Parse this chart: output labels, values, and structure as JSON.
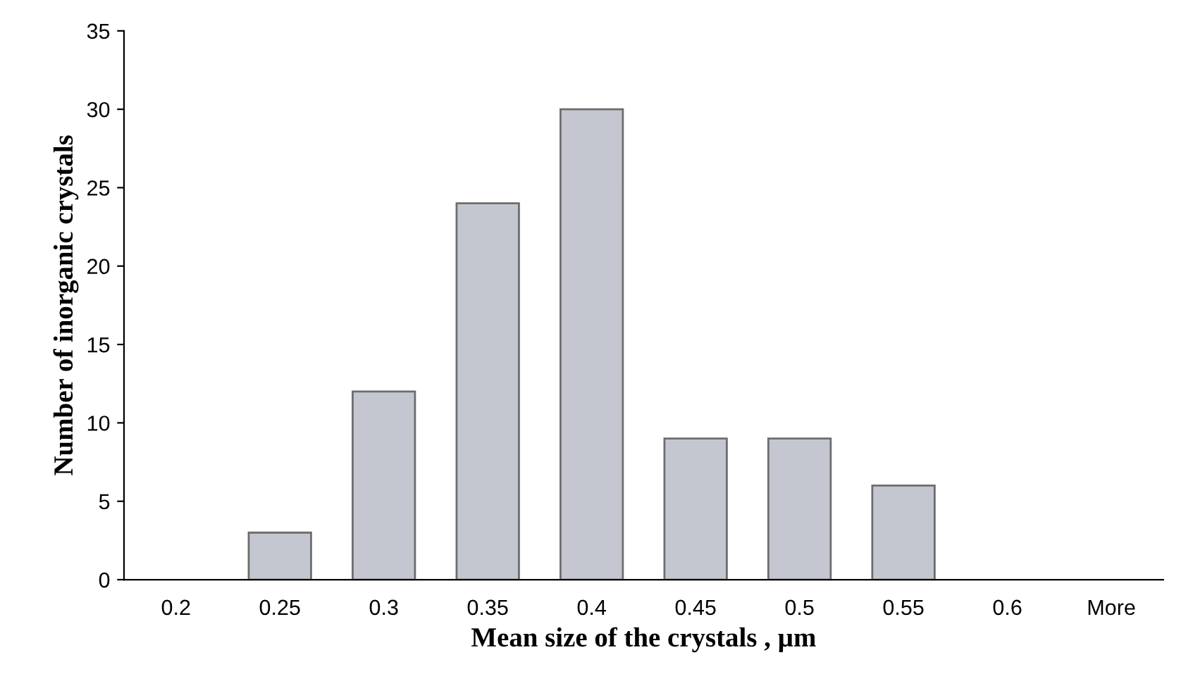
{
  "chart_data": {
    "type": "bar",
    "xlabel": "Mean size of the crystals , µm",
    "ylabel": "Number of inorganic crystals",
    "categories": [
      "0.2",
      "0.25",
      "0.3",
      "0.35",
      "0.4",
      "0.45",
      "0.5",
      "0.55",
      "0.6",
      "More"
    ],
    "values": [
      0,
      3,
      12,
      24,
      30,
      9,
      9,
      6,
      0,
      0
    ],
    "color": "#c4c7d0",
    "ylim": [
      0,
      35
    ],
    "yticks": [
      0,
      5,
      10,
      15,
      20,
      25,
      30,
      35
    ],
    "grid": false,
    "legend": false
  }
}
